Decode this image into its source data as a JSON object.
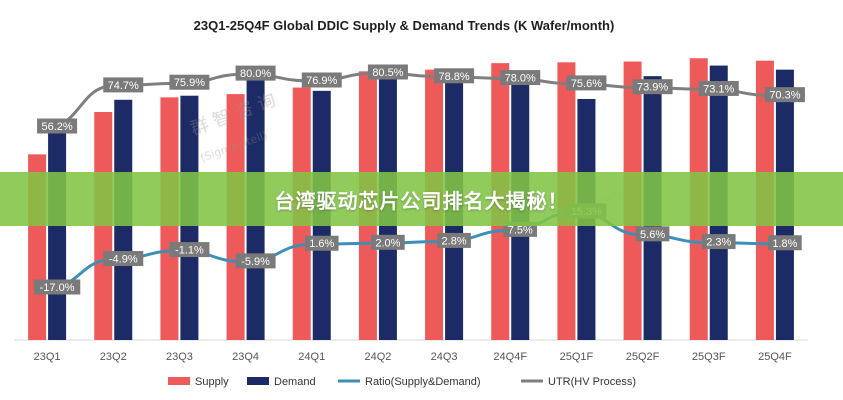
{
  "banner": {
    "text": "台湾驱动芯片公司排名大揭秘！"
  },
  "watermark": {
    "text_cn": "群 智 咨 询",
    "text_en": "(Sigmaintell)"
  },
  "colors": {
    "supply": "#EE5A5A",
    "demand": "#1C2A66",
    "ratio": "#3D8FB5",
    "utr": "#7F7F7F",
    "label_bg": "#7A7A7A"
  },
  "chart_data": {
    "type": "bar",
    "title": "23Q1-25Q4F Global DDIC Supply & Demand Trends (K Wafer/month)",
    "categories": [
      "23Q1",
      "23Q2",
      "23Q3",
      "23Q4",
      "24Q1",
      "24Q2",
      "24Q3",
      "24Q4F",
      "25Q1F",
      "25Q2F",
      "25Q3F",
      "25Q4F"
    ],
    "series": [
      {
        "name": "Supply",
        "kind": "bar",
        "values": [
          228,
          280,
          298,
          302,
          310,
          330,
          332,
          340,
          341,
          342,
          346,
          343
        ]
      },
      {
        "name": "Demand",
        "kind": "bar",
        "values": [
          262,
          295,
          300,
          333,
          306,
          332,
          325,
          315,
          296,
          324,
          337,
          332
        ]
      },
      {
        "name": "Ratio(Supply&Demand)",
        "kind": "line",
        "unit": "%",
        "values": [
          -17.0,
          -4.9,
          -1.1,
          -5.9,
          1.6,
          2.0,
          2.8,
          7.5,
          15.3,
          5.6,
          2.3,
          1.8
        ],
        "labels": [
          "-17.0%",
          "-4.9%",
          "-1.1%",
          "-5.9%",
          "1.6%",
          "2.0%",
          "2.8%",
          "7.5%",
          "15.3%",
          "5.6%",
          "2.3%",
          "1.8%"
        ]
      },
      {
        "name": "UTR(HV Process)",
        "kind": "line",
        "unit": "%",
        "values": [
          56.2,
          74.7,
          75.9,
          80.0,
          76.9,
          80.5,
          78.8,
          78.0,
          75.6,
          73.9,
          73.1,
          70.3
        ],
        "labels": [
          "56.2%",
          "74.7%",
          "75.9%",
          "80.0%",
          "76.9%",
          "80.5%",
          "78.8%",
          "78.0%",
          "75.6%",
          "73.9%",
          "73.1%",
          "70.3%"
        ]
      }
    ],
    "bar_axis_range": [
      0,
      350
    ],
    "ratio_axis_range": [
      -20,
      20
    ],
    "utr_axis_range": [
      0,
      100
    ],
    "grid": false,
    "legend_position": "bottom",
    "legend": [
      "Supply",
      "Demand",
      "Ratio(Supply&Demand)",
      "UTR(HV Process)"
    ]
  }
}
